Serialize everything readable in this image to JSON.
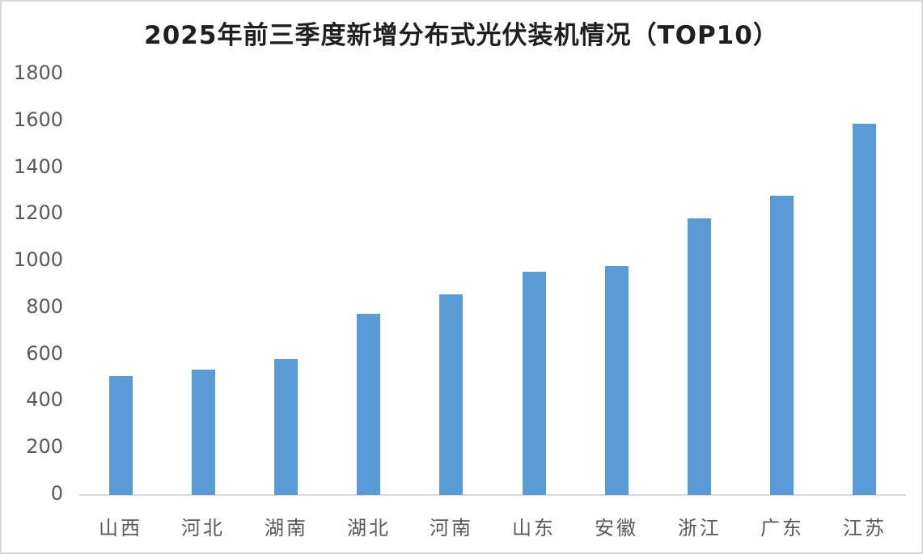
{
  "chart_data": {
    "type": "bar",
    "title": "2025年前三季度新增分布式光伏装机情况（TOP10）",
    "categories": [
      "山西",
      "河北",
      "湖南",
      "湖北",
      "河南",
      "山东",
      "安徽",
      "浙江",
      "广东",
      "江苏"
    ],
    "values": [
      510,
      535,
      580,
      775,
      860,
      955,
      980,
      1185,
      1280,
      1590
    ],
    "xlabel": "",
    "ylabel": "",
    "ylim": [
      0,
      1800
    ],
    "y_tick_step": 200,
    "y_tick_labels": [
      "0",
      "200",
      "400",
      "600",
      "800",
      "1000",
      "1200",
      "1400",
      "1600",
      "1800"
    ],
    "grid": "off",
    "legend": "none",
    "bar_color": "#5b9bd5",
    "title_color": "#1f1f1f",
    "axis_label_color": "#595959",
    "axis_line_color": "#d9d9d9",
    "frame_border_color": "#d8d8d8"
  }
}
